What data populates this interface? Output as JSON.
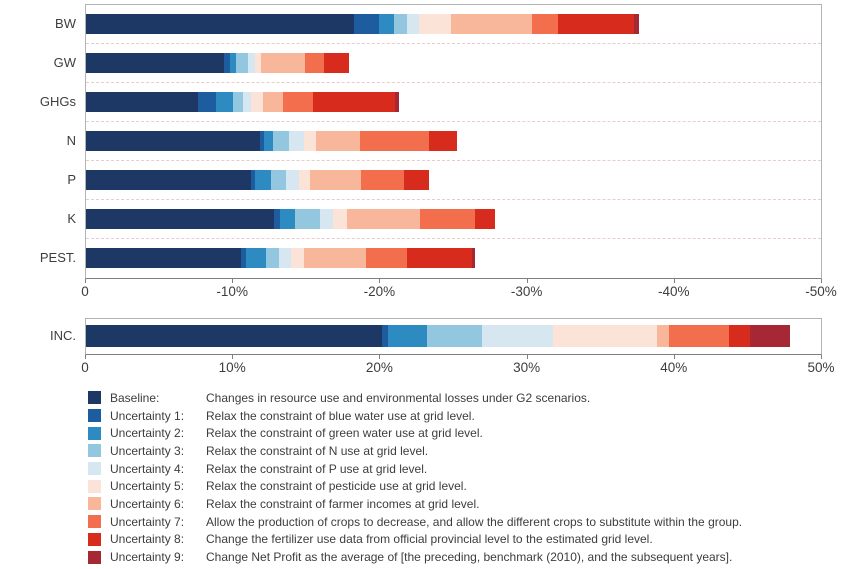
{
  "colors": {
    "baseline": "#1e3866",
    "u1": "#1c5c9f",
    "u2": "#2e8bc2",
    "u3": "#93c6df",
    "u4": "#d6e7f2",
    "u5": "#fbe3d8",
    "u6": "#f8b69a",
    "u7": "#f26e4c",
    "u8": "#d72c1d",
    "u9": "#a52834",
    "grid_dash": "#e7cccc",
    "axis": "#7f7f7f"
  },
  "chart_data": [
    {
      "type": "bar",
      "variant": "horizontal-stacked",
      "panel": "resources",
      "categories": [
        "BW",
        "GW",
        "GHGs",
        "N",
        "P",
        "K",
        "PEST."
      ],
      "series": [
        {
          "name": "Baseline",
          "color_key": "baseline",
          "values": [
            18.2,
            9.4,
            7.6,
            11.8,
            11.2,
            12.8,
            10.5
          ]
        },
        {
          "name": "Uncertainty 1",
          "color_key": "u1",
          "values": [
            1.7,
            0.4,
            1.2,
            0.3,
            0.3,
            0.4,
            0.4
          ]
        },
        {
          "name": "Uncertainty 2",
          "color_key": "u2",
          "values": [
            1.0,
            0.4,
            1.2,
            0.6,
            1.1,
            1.0,
            1.3
          ]
        },
        {
          "name": "Uncertainty 3",
          "color_key": "u3",
          "values": [
            0.9,
            0.8,
            0.7,
            1.1,
            1.0,
            1.7,
            0.9
          ]
        },
        {
          "name": "Uncertainty 4",
          "color_key": "u4",
          "values": [
            0.8,
            0.5,
            0.5,
            1.0,
            0.9,
            0.9,
            0.8
          ]
        },
        {
          "name": "Uncertainty 5",
          "color_key": "u5",
          "values": [
            2.2,
            0.4,
            0.8,
            0.8,
            0.7,
            0.9,
            0.9
          ]
        },
        {
          "name": "Uncertainty 6",
          "color_key": "u6",
          "values": [
            5.5,
            3.0,
            1.4,
            3.0,
            3.5,
            5.0,
            4.2
          ]
        },
        {
          "name": "Uncertainty 7",
          "color_key": "u7",
          "values": [
            1.8,
            1.3,
            2.0,
            4.7,
            2.9,
            3.7,
            2.8
          ]
        },
        {
          "name": "Uncertainty 8",
          "color_key": "u8",
          "values": [
            5.1,
            1.7,
            5.6,
            1.9,
            1.7,
            1.4,
            4.4
          ]
        },
        {
          "name": "Uncertainty 9",
          "color_key": "u9",
          "values": [
            0.4,
            0.0,
            0.3,
            0.0,
            0.0,
            0.0,
            0.2
          ]
        }
      ],
      "tick_labels": [
        "0",
        "-10%",
        "-20%",
        "-30%",
        "-40%",
        "-50%"
      ],
      "xlim": [
        0,
        50
      ],
      "grid": "dashed-row-separators",
      "legend_position": "below"
    },
    {
      "type": "bar",
      "variant": "horizontal-stacked",
      "panel": "income",
      "categories": [
        "INC."
      ],
      "series": [
        {
          "name": "Baseline",
          "color_key": "baseline",
          "values": [
            20.1
          ]
        },
        {
          "name": "Uncertainty 1",
          "color_key": "u1",
          "values": [
            0.4
          ]
        },
        {
          "name": "Uncertainty 2",
          "color_key": "u2",
          "values": [
            2.7
          ]
        },
        {
          "name": "Uncertainty 3",
          "color_key": "u3",
          "values": [
            3.7
          ]
        },
        {
          "name": "Uncertainty 4",
          "color_key": "u4",
          "values": [
            4.8
          ]
        },
        {
          "name": "Uncertainty 5",
          "color_key": "u5",
          "values": [
            7.1
          ]
        },
        {
          "name": "Uncertainty 6",
          "color_key": "u6",
          "values": [
            0.8
          ]
        },
        {
          "name": "Uncertainty 7",
          "color_key": "u7",
          "values": [
            4.1
          ]
        },
        {
          "name": "Uncertainty 8",
          "color_key": "u8",
          "values": [
            1.4
          ]
        },
        {
          "name": "Uncertainty 9",
          "color_key": "u9",
          "values": [
            2.7
          ]
        }
      ],
      "tick_labels": [
        "0",
        "10%",
        "20%",
        "30%",
        "40%",
        "50%"
      ],
      "xlim": [
        0,
        50
      ],
      "grid": "none",
      "legend_position": "below"
    }
  ],
  "legend": {
    "items": [
      {
        "color_key": "baseline",
        "label": "Baseline:",
        "description": "Changes in resource use and environmental losses under G2 scenarios."
      },
      {
        "color_key": "u1",
        "label": "Uncertainty 1:",
        "description": "Relax the constraint of blue water use at grid level."
      },
      {
        "color_key": "u2",
        "label": "Uncertainty 2:",
        "description": "Relax the constraint of green water use at grid level."
      },
      {
        "color_key": "u3",
        "label": "Uncertainty 3:",
        "description": "Relax the constraint of N use at grid level."
      },
      {
        "color_key": "u4",
        "label": "Uncertainty 4:",
        "description": "Relax the constraint of P use at grid level."
      },
      {
        "color_key": "u5",
        "label": "Uncertainty 5:",
        "description": "Relax the constraint of pesticide use at grid level."
      },
      {
        "color_key": "u6",
        "label": "Uncertainty 6:",
        "description": "Relax the constraint of farmer incomes at grid level."
      },
      {
        "color_key": "u7",
        "label": "Uncertainty 7:",
        "description": "Allow the production of crops to decrease, and allow the different crops to substitute within the group."
      },
      {
        "color_key": "u8",
        "label": "Uncertainty 8:",
        "description": "Change the fertilizer use data from official provincial level to the estimated grid level."
      },
      {
        "color_key": "u9",
        "label": "Uncertainty 9:",
        "description": "Change Net Profit as the average of [the preceding, benchmark (2010), and the subsequent years]."
      }
    ]
  }
}
